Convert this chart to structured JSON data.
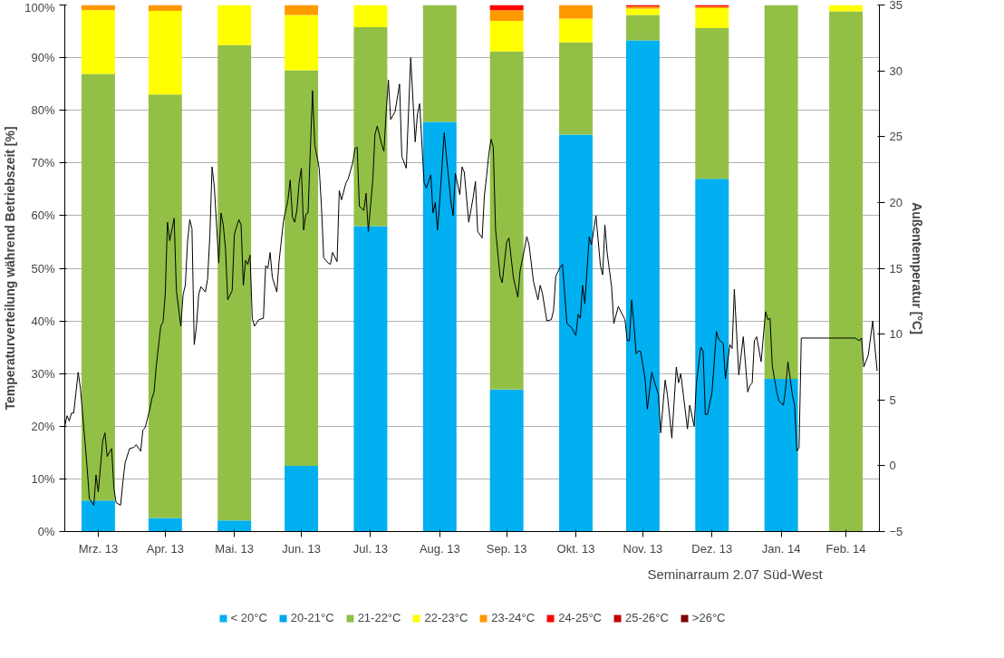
{
  "chart_data": {
    "type": "bar",
    "stacked": true,
    "ylabel": "Temperaturverteilung während Betriebszeit [%]",
    "y2label": "Außentemperatur [°C]",
    "annotations": [
      "Seminarraum 2.07 Süd-West"
    ],
    "x": [
      "2013-03-16",
      "2013-04-15",
      "2013-05-16",
      "2013-06-15",
      "2013-07-16",
      "2013-08-16",
      "2013-09-15",
      "2013-10-16",
      "2013-11-15",
      "2013-12-16",
      "2014-01-16",
      "2014-02-14"
    ],
    "xlim": [
      "2013-03-01",
      "2014-03-01"
    ],
    "xticks": [
      {
        "value": "2013-03-16",
        "label": "Mrz. 13"
      },
      {
        "value": "2013-04-15",
        "label": "Apr. 13"
      },
      {
        "value": "2013-05-16",
        "label": "Mai. 13"
      },
      {
        "value": "2013-06-15",
        "label": "Jun. 13"
      },
      {
        "value": "2013-07-16",
        "label": "Jul. 13"
      },
      {
        "value": "2013-08-16",
        "label": "Aug. 13"
      },
      {
        "value": "2013-09-15",
        "label": "Sep. 13"
      },
      {
        "value": "2013-10-16",
        "label": "Okt. 13"
      },
      {
        "value": "2013-11-15",
        "label": "Nov. 13"
      },
      {
        "value": "2013-12-16",
        "label": "Dez. 13"
      },
      {
        "value": "2014-01-16",
        "label": "Jan. 14"
      },
      {
        "value": "2014-02-14",
        "label": "Feb. 14"
      }
    ],
    "ylim": [
      0,
      100
    ],
    "yticks": [
      {
        "value": 0,
        "label": "0%"
      },
      {
        "value": 10,
        "label": "10%"
      },
      {
        "value": 20,
        "label": "20%"
      },
      {
        "value": 30,
        "label": "30%"
      },
      {
        "value": 40,
        "label": "40%"
      },
      {
        "value": 50,
        "label": "50%"
      },
      {
        "value": 60,
        "label": "60%"
      },
      {
        "value": 70,
        "label": "70%"
      },
      {
        "value": 80,
        "label": "80%"
      },
      {
        "value": 90,
        "label": "90%"
      },
      {
        "value": 100,
        "label": "100%"
      }
    ],
    "y2lim": [
      -5,
      35
    ],
    "y2ticks": [
      -5,
      0,
      5,
      10,
      15,
      20,
      25,
      30,
      35
    ],
    "grid": "y",
    "legend": "bottom",
    "series": [
      {
        "name": "< 20°C",
        "color": "#00b0f0",
        "values": [
          5.9,
          2.6,
          2.1,
          12.5,
          58,
          77.8,
          27,
          75.4,
          93.3,
          67,
          29,
          null
        ]
      },
      {
        "name": "20-21°C",
        "color": "#00a8e8",
        "values": [
          null,
          null,
          null,
          null,
          null,
          null,
          null,
          null,
          null,
          null,
          null,
          null
        ]
      },
      {
        "name": "21-22°C",
        "color": "#92c047",
        "values": [
          81,
          80.4,
          90.3,
          75.1,
          37.8,
          22.2,
          64.2,
          17.5,
          4.8,
          28.6,
          71,
          98.8
        ]
      },
      {
        "name": "22-23°C",
        "color": "#ffff00",
        "values": [
          12.1,
          15.9,
          7.6,
          10.5,
          4.2,
          null,
          5.8,
          4.5,
          1.2,
          3.8,
          null,
          1.2
        ]
      },
      {
        "name": "23-24°C",
        "color": "#ff9900",
        "values": [
          1,
          1.1,
          null,
          1.9,
          null,
          null,
          2,
          2.6,
          0.4,
          0.3,
          null,
          null
        ]
      },
      {
        "name": "24-25°C",
        "color": "#ff0000",
        "values": [
          null,
          null,
          null,
          null,
          null,
          null,
          1,
          null,
          0.3,
          0.3,
          null,
          null
        ]
      },
      {
        "name": "25-26°C",
        "color": "#c00000",
        "values": [
          null,
          null,
          null,
          null,
          null,
          null,
          null,
          null,
          null,
          null,
          null,
          null
        ]
      },
      {
        "name": ">26°C",
        "color": "#7f0000",
        "values": [
          null,
          null,
          null,
          null,
          null,
          null,
          null,
          null,
          null,
          null,
          null,
          null
        ]
      },
      {
        "type": "line",
        "axis": "y2",
        "color": "#000000",
        "x": [
          "2013-03-01",
          "2013-03-02",
          "2013-03-03",
          "2013-03-04",
          "2013-03-05",
          "2013-03-07",
          "2013-03-08",
          "2013-03-10",
          "2013-03-11",
          "2013-03-12",
          "2013-03-14",
          "2013-03-15",
          "2013-03-16",
          "2013-03-18",
          "2013-03-19",
          "2013-03-20",
          "2013-03-22",
          "2013-03-23",
          "2013-03-24",
          "2013-03-26",
          "2013-03-27",
          "2013-03-28",
          "2013-03-30",
          "2013-04-01",
          "2013-04-02",
          "2013-04-04",
          "2013-04-05",
          "2013-04-06",
          "2013-04-08",
          "2013-04-09",
          "2013-04-10",
          "2013-04-11",
          "2013-04-13",
          "2013-04-14",
          "2013-04-15",
          "2013-04-16",
          "2013-04-17",
          "2013-04-19",
          "2013-04-20",
          "2013-04-22",
          "2013-04-23",
          "2013-04-24",
          "2013-04-25",
          "2013-04-26",
          "2013-04-27",
          "2013-04-28",
          "2013-04-29",
          "2013-04-30",
          "2013-05-01",
          "2013-05-03",
          "2013-05-04",
          "2013-05-05",
          "2013-05-06",
          "2013-05-07",
          "2013-05-09",
          "2013-05-10",
          "2013-05-11",
          "2013-05-12",
          "2013-05-13",
          "2013-05-15",
          "2013-05-16",
          "2013-05-18",
          "2013-05-19",
          "2013-05-20",
          "2013-05-21",
          "2013-05-22",
          "2013-05-23",
          "2013-05-24",
          "2013-05-25",
          "2013-05-27",
          "2013-05-29",
          "2013-05-30",
          "2013-05-31",
          "2013-06-01",
          "2013-06-02",
          "2013-06-04",
          "2013-06-05",
          "2013-06-07",
          "2013-06-09",
          "2013-06-10",
          "2013-06-11",
          "2013-06-12",
          "2013-06-13",
          "2013-06-14",
          "2013-06-15",
          "2013-06-16",
          "2013-06-17",
          "2013-06-18",
          "2013-06-20",
          "2013-06-21",
          "2013-06-23",
          "2013-06-24",
          "2013-06-25",
          "2013-06-27",
          "2013-06-28",
          "2013-06-29",
          "2013-07-01",
          "2013-07-02",
          "2013-07-03",
          "2013-07-05",
          "2013-07-06",
          "2013-07-08",
          "2013-07-09",
          "2013-07-10",
          "2013-07-11",
          "2013-07-13",
          "2013-07-14",
          "2013-07-15",
          "2013-07-17",
          "2013-07-18",
          "2013-07-19",
          "2013-07-21",
          "2013-07-22",
          "2013-07-23",
          "2013-07-24",
          "2013-07-25",
          "2013-07-27",
          "2013-07-29",
          "2013-07-30",
          "2013-08-01",
          "2013-08-03",
          "2013-08-05",
          "2013-08-06",
          "2013-08-07",
          "2013-08-09",
          "2013-08-10",
          "2013-08-12",
          "2013-08-13",
          "2013-08-14",
          "2013-08-15",
          "2013-08-16",
          "2013-08-18",
          "2013-08-19",
          "2013-08-21",
          "2013-08-22",
          "2013-08-23",
          "2013-08-25",
          "2013-08-26",
          "2013-08-27",
          "2013-08-29",
          "2013-08-31",
          "2013-09-01",
          "2013-09-02",
          "2013-09-04",
          "2013-09-05",
          "2013-09-06",
          "2013-09-07",
          "2013-09-08",
          "2013-09-09",
          "2013-09-10",
          "2013-09-12",
          "2013-09-13",
          "2013-09-15",
          "2013-09-16",
          "2013-09-18",
          "2013-09-20",
          "2013-09-21",
          "2013-09-23",
          "2013-09-24",
          "2013-09-25",
          "2013-09-27",
          "2013-09-29",
          "2013-09-30",
          "2013-10-01",
          "2013-10-03",
          "2013-10-05",
          "2013-10-06",
          "2013-10-07",
          "2013-10-09",
          "2013-10-10",
          "2013-10-12",
          "2013-10-14",
          "2013-10-16",
          "2013-10-17",
          "2013-10-18",
          "2013-10-19",
          "2013-10-20",
          "2013-10-22",
          "2013-10-23",
          "2013-10-25",
          "2013-10-27",
          "2013-10-28",
          "2013-10-29",
          "2013-10-30",
          "2013-11-01",
          "2013-11-02",
          "2013-11-04",
          "2013-11-07",
          "2013-11-08",
          "2013-11-09",
          "2013-11-10",
          "2013-11-11",
          "2013-11-12",
          "2013-11-13",
          "2013-11-14",
          "2013-11-16",
          "2013-11-17",
          "2013-11-19",
          "2013-11-20",
          "2013-11-22",
          "2013-11-23",
          "2013-11-25",
          "2013-11-26",
          "2013-11-28",
          "2013-11-30",
          "2013-12-01",
          "2013-12-02",
          "2013-12-05",
          "2013-12-06",
          "2013-12-08",
          "2013-12-09",
          "2013-12-11",
          "2013-12-12",
          "2013-12-13",
          "2013-12-14",
          "2013-12-16",
          "2013-12-18",
          "2013-12-19",
          "2013-12-21",
          "2013-12-22",
          "2013-12-24",
          "2013-12-25",
          "2013-12-26",
          "2013-12-28",
          "2013-12-30",
          "2014-01-01",
          "2014-01-02",
          "2014-01-03",
          "2014-01-04",
          "2014-01-05",
          "2014-01-07",
          "2014-01-09",
          "2014-01-10",
          "2014-01-11",
          "2014-01-12",
          "2014-01-14",
          "2014-01-15",
          "2014-01-17",
          "2014-01-18",
          "2014-01-19",
          "2014-01-21",
          "2014-01-22",
          "2014-01-23",
          "2014-01-24",
          "2014-01-25",
          "2014-02-18",
          "2014-02-20",
          "2014-02-21",
          "2014-02-22",
          "2014-02-24",
          "2014-02-26",
          "2014-02-27",
          "2014-02-28"
        ],
        "values": [
          3.0,
          3.8,
          3.4,
          4.0,
          4.0,
          7.1,
          5.9,
          1.9,
          -0.1,
          -2.5,
          -3.0,
          -0.7,
          -2.0,
          1.9,
          2.5,
          0.7,
          1.3,
          -1.7,
          -2.8,
          -3.0,
          -1.3,
          0.2,
          1.3,
          1.4,
          1.6,
          1.1,
          2.7,
          2.9,
          4.2,
          5.1,
          5.6,
          7.6,
          10.6,
          10.9,
          13.0,
          18.5,
          17.1,
          18.8,
          13.3,
          10.6,
          13.0,
          13.7,
          17.0,
          18.7,
          18.0,
          9.2,
          10.6,
          13.0,
          13.6,
          13.2,
          14.2,
          17.5,
          22.7,
          21.2,
          15.4,
          19.2,
          18.3,
          16.5,
          12.6,
          13.3,
          17.6,
          18.7,
          18.3,
          13.7,
          15.6,
          15.3,
          16.0,
          11.2,
          10.6,
          11.1,
          11.2,
          15.2,
          15.0,
          16.2,
          14.3,
          13.2,
          15.5,
          18.6,
          20.2,
          21.7,
          18.9,
          18.5,
          19.4,
          21.5,
          22.6,
          17.9,
          19.1,
          19.2,
          28.5,
          24.4,
          22.6,
          19.7,
          15.8,
          15.4,
          15.3,
          16.2,
          15.5,
          20.9,
          20.2,
          21.5,
          21.8,
          23.0,
          24.1,
          24.2,
          19.7,
          19.4,
          20.7,
          17.8,
          21.7,
          25.2,
          25.8,
          24.4,
          23.9,
          26.9,
          29.3,
          26.3,
          26.9,
          29.0,
          23.5,
          22.6,
          31.0,
          24.6,
          26.7,
          27.5,
          21.5,
          21.1,
          22.1,
          19.2,
          20.0,
          17.9,
          20.1,
          25.3,
          23.5,
          20.1,
          19.0,
          22.2,
          20.6,
          22.7,
          22.3,
          18.5,
          20.4,
          21.6,
          17.8,
          17.3,
          20.5,
          22.0,
          23.7,
          24.8,
          24.2,
          18.0,
          14.4,
          13.9,
          17.0,
          17.3,
          14.3,
          12.8,
          14.8,
          16.5,
          17.4,
          16.8,
          14.0,
          12.6,
          13.7,
          13.1,
          11.0,
          11.1,
          11.8,
          14.4,
          15.1,
          15.3,
          10.8,
          10.5,
          9.9,
          11.5,
          11.2,
          13.7,
          12.3,
          17.4,
          16.8,
          19.0,
          15.2,
          14.5,
          18.3,
          16.2,
          13.6,
          10.8,
          12.1,
          11.1,
          9.5,
          9.5,
          12.6,
          10.8,
          8.5,
          8.7,
          8.7,
          6.6,
          4.3,
          7.1,
          6.5,
          5.4,
          2.5,
          6.5,
          5.4,
          2.1,
          7.5,
          6.3,
          7.0,
          2.8,
          4.6,
          3.0,
          6.3,
          9.0,
          8.7,
          3.9,
          3.9,
          5.6,
          10.2,
          9.6,
          9.3,
          6.6,
          9.2,
          8.9,
          13.4,
          6.9,
          9.8,
          5.6,
          6.1,
          6.3,
          9.5,
          9.8,
          7.9,
          11.7,
          11.1,
          11.2,
          7.6,
          5.6,
          4.9,
          4.6,
          5.9,
          7.9,
          5.4,
          4.6,
          1.1,
          1.4,
          9.7,
          9.7,
          9.5,
          9.7,
          7.5,
          8.4,
          11.0,
          9.0,
          7.2
        ]
      }
    ]
  }
}
